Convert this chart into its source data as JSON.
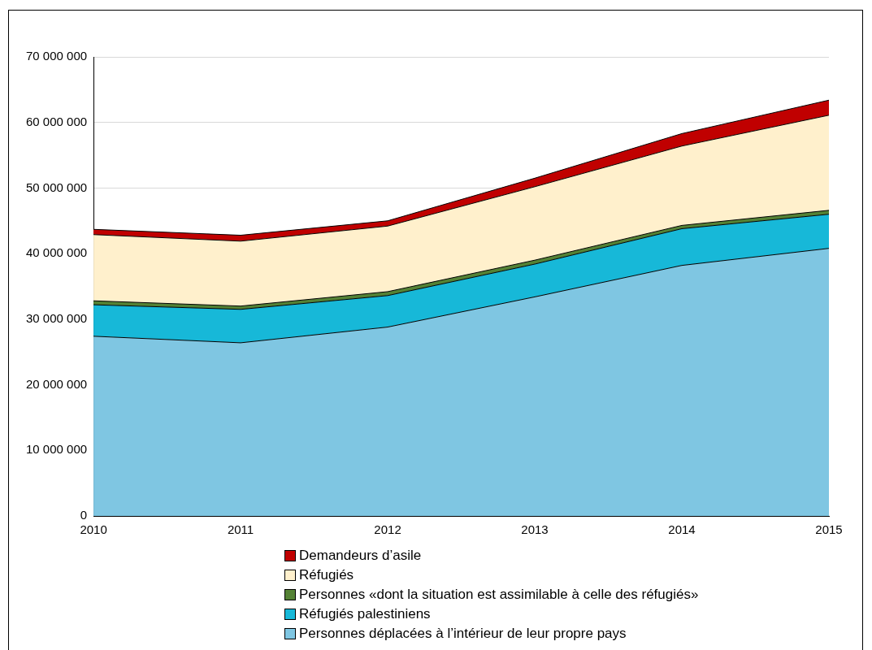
{
  "chart_data": {
    "type": "area",
    "stacked": true,
    "categories": [
      "2010",
      "2011",
      "2012",
      "2013",
      "2014",
      "2015"
    ],
    "series": [
      {
        "name": "Personnes déplacées à l’intérieur de leur propre pays",
        "color": "#7fc6e2",
        "values": [
          27400000,
          26400000,
          28800000,
          33400000,
          38200000,
          40800000
        ]
      },
      {
        "name": "Réfugiés palestiniens",
        "color": "#17b8d8",
        "values": [
          4800000,
          5100000,
          4800000,
          5000000,
          5600000,
          5200000
        ]
      },
      {
        "name": "Personnes «dont la situation est assimilable à celle des réfugiés»",
        "color": "#548235",
        "values": [
          600000,
          500000,
          600000,
          600000,
          500000,
          600000
        ]
      },
      {
        "name": "Réfugiés",
        "color": "#fff0cc",
        "values": [
          10100000,
          9900000,
          10000000,
          11200000,
          12100000,
          14500000
        ]
      },
      {
        "name": "Demandeurs d’asile",
        "color": "#c00000",
        "values": [
          800000,
          900000,
          800000,
          1300000,
          1900000,
          2300000
        ]
      }
    ],
    "ylim": [
      0,
      70000000
    ],
    "yticks": [
      0,
      {
        "value": 10000000,
        "label": "10 000 000"
      },
      {
        "value": 20000000,
        "label": "20 000 000"
      },
      {
        "value": 30000000,
        "label": "30 000 000"
      },
      {
        "value": 40000000,
        "label": "40 000 000"
      },
      {
        "value": 50000000,
        "label": "50 000 000"
      },
      {
        "value": 60000000,
        "label": "60 000 000"
      },
      {
        "value": 70000000,
        "label": "70 000 000"
      }
    ],
    "grid": "y",
    "legend": "bottom"
  }
}
